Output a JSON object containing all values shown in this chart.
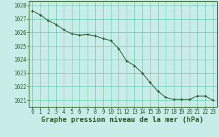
{
  "x": [
    0,
    1,
    2,
    3,
    4,
    5,
    6,
    7,
    8,
    9,
    10,
    11,
    12,
    13,
    14,
    15,
    16,
    17,
    18,
    19,
    20,
    21,
    22,
    23
  ],
  "y": [
    1027.6,
    1027.3,
    1026.9,
    1026.6,
    1026.2,
    1025.9,
    1025.8,
    1025.85,
    1025.75,
    1025.55,
    1025.4,
    1024.8,
    1023.9,
    1023.55,
    1023.0,
    1022.3,
    1021.65,
    1021.2,
    1021.05,
    1021.05,
    1021.05,
    1021.3,
    1021.3,
    1021.0
  ],
  "line_color": "#2d5a27",
  "marker": "+",
  "marker_color": "#2d5a27",
  "bg_color": "#c8ece8",
  "grid_color": "#66ccaa",
  "axis_color": "#2d5a27",
  "xlabel": "Graphe pression niveau de la mer (hPa)",
  "xlabel_color": "#2d5a27",
  "ylim_min": 1020.5,
  "ylim_max": 1028.3,
  "yticks": [
    1021,
    1022,
    1023,
    1024,
    1025,
    1026,
    1027,
    1028
  ],
  "xticks": [
    0,
    1,
    2,
    3,
    4,
    5,
    6,
    7,
    8,
    9,
    10,
    11,
    12,
    13,
    14,
    15,
    16,
    17,
    18,
    19,
    20,
    21,
    22,
    23
  ],
  "tick_fontsize": 5.5,
  "xlabel_fontsize": 7.5,
  "fig_width": 3.2,
  "fig_height": 2.0,
  "dpi": 100
}
